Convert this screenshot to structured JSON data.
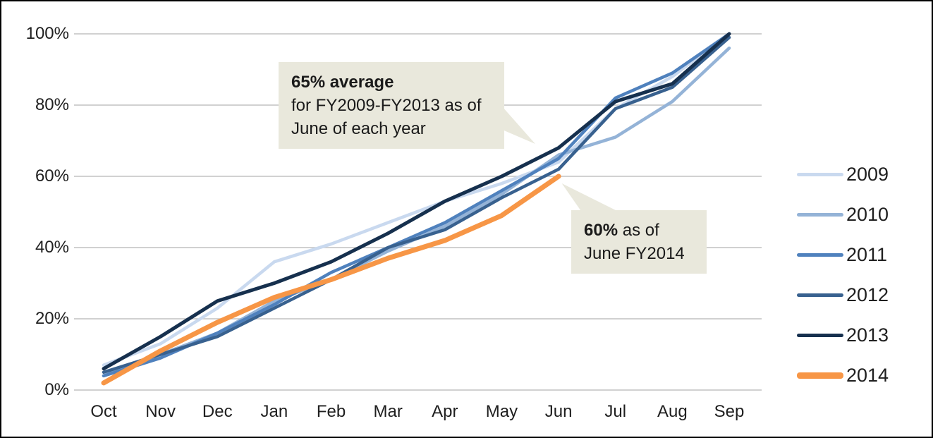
{
  "figure": {
    "background": "#ffffff",
    "border_color": "#000000",
    "text_color": "#1f1f1f",
    "gridline_color": "#c2c2c2",
    "annotation_bg": "#e9e8dc"
  },
  "chart_data": {
    "type": "line",
    "title": "",
    "xlabel": "",
    "ylabel": "",
    "categories": [
      "Oct",
      "Nov",
      "Dec",
      "Jan",
      "Feb",
      "Mar",
      "Apr",
      "May",
      "Jun",
      "Jul",
      "Aug",
      "Sep"
    ],
    "series": [
      {
        "name": "2009",
        "color": "#c9d9ef",
        "width": 4.5,
        "values": [
          7,
          13,
          23,
          36,
          41,
          47,
          53,
          58,
          64,
          79,
          88,
          100
        ]
      },
      {
        "name": "2010",
        "color": "#94b3d7",
        "width": 4.5,
        "values": [
          4,
          10,
          16,
          25,
          31,
          39,
          46,
          55,
          66,
          71,
          81,
          96
        ]
      },
      {
        "name": "2011",
        "color": "#4f81bd",
        "width": 4.5,
        "values": [
          4,
          9,
          16,
          24,
          33,
          40,
          47,
          56,
          65,
          82,
          89,
          100
        ]
      },
      {
        "name": "2012",
        "color": "#38618f",
        "width": 4.5,
        "values": [
          5,
          10,
          15,
          23,
          31,
          40,
          45,
          54,
          62,
          79,
          85,
          99
        ]
      },
      {
        "name": "2013",
        "color": "#16304e",
        "width": 5,
        "values": [
          6,
          15,
          25,
          30,
          36,
          44,
          53,
          60,
          68,
          81,
          86,
          100
        ]
      },
      {
        "name": "2014",
        "color": "#f79646",
        "width": 7,
        "values": [
          2,
          11,
          19,
          26,
          31,
          37,
          42,
          49,
          60
        ]
      }
    ],
    "ylim": [
      0,
      100
    ],
    "yticks": {
      "values": [
        0,
        20,
        40,
        60,
        80,
        100
      ],
      "labels": [
        "0%",
        "20%",
        "40%",
        "60%",
        "80%",
        "100%"
      ]
    },
    "grid": "horizontal",
    "legend_position": "right",
    "legend_entries": [
      "2009",
      "2010",
      "2011",
      "2012",
      "2013",
      "2014"
    ],
    "annotations": [
      {
        "bold": "65% average",
        "text": "for FY2009-FY2013 as of June of each year",
        "anchor": "Jun, 65% (FY2009-FY2013 lines)"
      },
      {
        "bold": "60%",
        "text": "as of June FY2014",
        "anchor": "Jun, 60% (FY2014 line end)"
      }
    ]
  }
}
